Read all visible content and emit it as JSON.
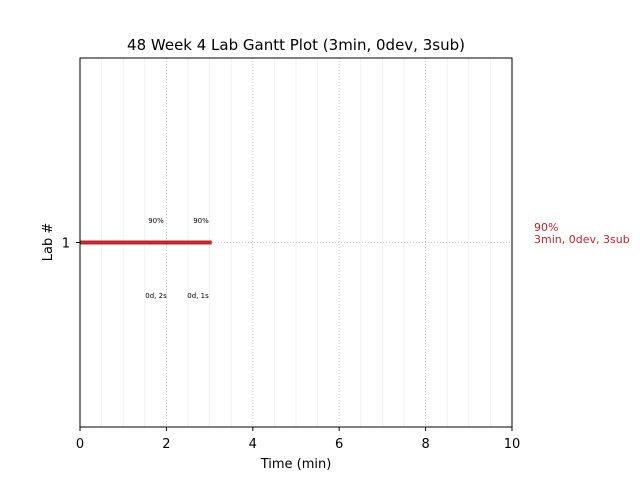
{
  "chart_data": {
    "type": "gantt",
    "title": "48 Week 4 Lab Gantt Plot (3min, 0dev, 3sub)",
    "xlabel": "Time (min)",
    "ylabel": "Lab #",
    "xlim": [
      0,
      10
    ],
    "xticks": [
      0,
      2,
      4,
      6,
      8,
      10
    ],
    "ylim": [
      0,
      2
    ],
    "yticks": [
      1
    ],
    "grid": true,
    "minor_grid": true,
    "color": "#c0262a",
    "bars": [
      {
        "lab": 1,
        "start": 0,
        "end": 3.05
      }
    ],
    "annotations_top": [
      "90%",
      "90%"
    ],
    "annotations_bottom": [
      "0d, 2s",
      "0d, 1s"
    ],
    "side_label": [
      "90%",
      "3min, 0dev, 3sub"
    ]
  }
}
